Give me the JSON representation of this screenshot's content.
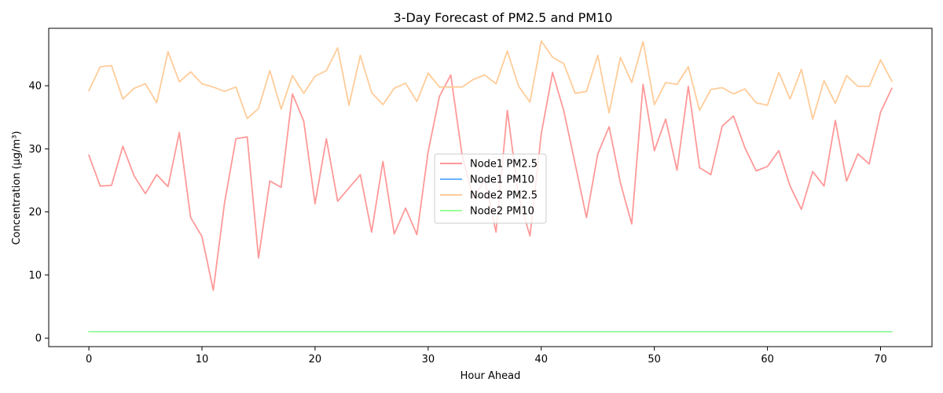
{
  "chart_data": {
    "type": "line",
    "title": "3-Day Forecast of PM2.5 and PM10",
    "xlabel": "Hour Ahead",
    "ylabel": "Concentration (µg/m³)",
    "xlim": [
      -3.55,
      74.55
    ],
    "ylim": [
      -1.35,
      49.1
    ],
    "xticks": [
      0,
      10,
      20,
      30,
      40,
      50,
      60,
      70
    ],
    "yticks": [
      0,
      10,
      20,
      30,
      40
    ],
    "grid": false,
    "legend_position": "center",
    "x": [
      0,
      1,
      2,
      3,
      4,
      5,
      6,
      7,
      8,
      9,
      10,
      11,
      12,
      13,
      14,
      15,
      16,
      17,
      18,
      19,
      20,
      21,
      22,
      23,
      24,
      25,
      26,
      27,
      28,
      29,
      30,
      31,
      32,
      33,
      34,
      35,
      36,
      37,
      38,
      39,
      40,
      41,
      42,
      43,
      44,
      45,
      46,
      47,
      48,
      49,
      50,
      51,
      52,
      53,
      54,
      55,
      56,
      57,
      58,
      59,
      60,
      61,
      62,
      63,
      64,
      65,
      66,
      67,
      68,
      69,
      70,
      71
    ],
    "series": [
      {
        "name": "Node1 PM2.5",
        "color": "#ff9999",
        "values": [
          29.0,
          24.1,
          24.2,
          30.4,
          25.7,
          22.9,
          25.9,
          24.0,
          32.6,
          19.1,
          16.1,
          7.6,
          21.5,
          31.6,
          31.9,
          12.7,
          24.9,
          23.9,
          38.7,
          34.4,
          21.3,
          31.6,
          21.7,
          23.8,
          25.9,
          16.8,
          28.0,
          16.5,
          20.6,
          16.4,
          29.5,
          38.3,
          41.7,
          29.0,
          22.1,
          25.1,
          16.8,
          36.1,
          22.4,
          16.2,
          32.4,
          42.1,
          36.0,
          27.6,
          19.1,
          29.2,
          33.5,
          24.6,
          18.1,
          40.2,
          29.7,
          34.7,
          26.6,
          39.9,
          27.0,
          25.9,
          33.6,
          35.2,
          30.2,
          26.5,
          27.2,
          29.7,
          24.1,
          20.4,
          26.4,
          24.1,
          34.5,
          24.9,
          29.2,
          27.6,
          35.8,
          39.6
        ]
      },
      {
        "name": "Node1 PM10",
        "color": "#66b3ff",
        "values": [
          1.0,
          1.0,
          1.0,
          1.0,
          1.0,
          1.0,
          1.0,
          1.0,
          1.0,
          1.0,
          1.0,
          1.0,
          1.0,
          1.0,
          1.0,
          1.0,
          1.0,
          1.0,
          1.0,
          1.0,
          1.0,
          1.0,
          1.0,
          1.0,
          1.0,
          1.0,
          1.0,
          1.0,
          1.0,
          1.0,
          1.0,
          1.0,
          1.0,
          1.0,
          1.0,
          1.0,
          1.0,
          1.0,
          1.0,
          1.0,
          1.0,
          1.0,
          1.0,
          1.0,
          1.0,
          1.0,
          1.0,
          1.0,
          1.0,
          1.0,
          1.0,
          1.0,
          1.0,
          1.0,
          1.0,
          1.0,
          1.0,
          1.0,
          1.0,
          1.0,
          1.0,
          1.0,
          1.0,
          1.0,
          1.0,
          1.0,
          1.0,
          1.0,
          1.0,
          1.0,
          1.0,
          1.0
        ]
      },
      {
        "name": "Node2 PM2.5",
        "color": "#ffcc99",
        "values": [
          39.2,
          43.0,
          43.2,
          37.9,
          39.6,
          40.3,
          37.3,
          45.4,
          40.6,
          42.2,
          40.3,
          39.8,
          39.1,
          39.8,
          34.8,
          36.4,
          42.4,
          36.3,
          41.6,
          38.8,
          41.5,
          42.4,
          46.0,
          36.9,
          44.8,
          38.9,
          37.0,
          39.6,
          40.4,
          37.5,
          42.0,
          39.8,
          39.8,
          39.8,
          41.0,
          41.7,
          40.3,
          45.5,
          39.9,
          37.4,
          47.1,
          44.5,
          43.5,
          38.8,
          39.1,
          44.8,
          35.7,
          44.5,
          40.5,
          47.0,
          37.0,
          40.5,
          40.2,
          43.0,
          36.1,
          39.4,
          39.7,
          38.7,
          39.5,
          37.3,
          36.9,
          42.1,
          37.9,
          42.6,
          34.7,
          40.8,
          37.2,
          41.6,
          39.9,
          39.9,
          44.1,
          40.7
        ]
      },
      {
        "name": "Node2 PM10",
        "color": "#99ff99",
        "values": [
          1.0,
          1.0,
          1.0,
          1.0,
          1.0,
          1.0,
          1.0,
          1.0,
          1.0,
          1.0,
          1.0,
          1.0,
          1.0,
          1.0,
          1.0,
          1.0,
          1.0,
          1.0,
          1.0,
          1.0,
          1.0,
          1.0,
          1.0,
          1.0,
          1.0,
          1.0,
          1.0,
          1.0,
          1.0,
          1.0,
          1.0,
          1.0,
          1.0,
          1.0,
          1.0,
          1.0,
          1.0,
          1.0,
          1.0,
          1.0,
          1.0,
          1.0,
          1.0,
          1.0,
          1.0,
          1.0,
          1.0,
          1.0,
          1.0,
          1.0,
          1.0,
          1.0,
          1.0,
          1.0,
          1.0,
          1.0,
          1.0,
          1.0,
          1.0,
          1.0,
          1.0,
          1.0,
          1.0,
          1.0,
          1.0,
          1.0,
          1.0,
          1.0,
          1.0,
          1.0,
          1.0,
          1.0
        ]
      }
    ]
  }
}
